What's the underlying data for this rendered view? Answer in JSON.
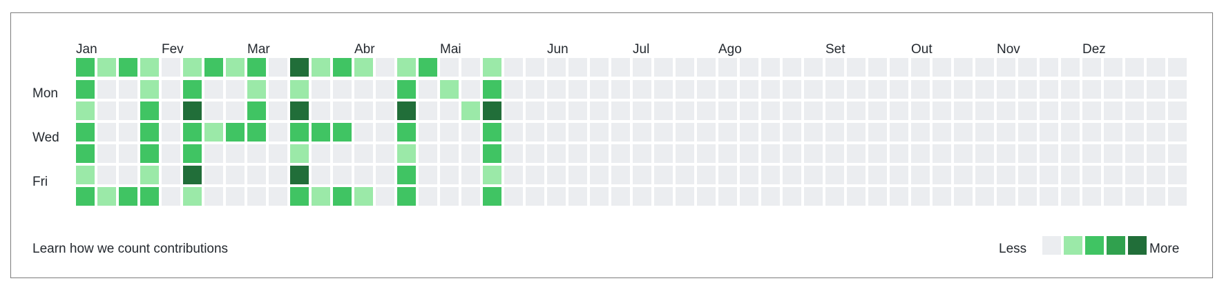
{
  "chart_data": {
    "type": "heatmap",
    "months": [
      "Jan",
      "Fev",
      "Mar",
      "Abr",
      "Mai",
      "Jun",
      "Jul",
      "Ago",
      "Set",
      "Out",
      "Nov",
      "Dez"
    ],
    "day_labels": [
      "Mon",
      "Wed",
      "Fri"
    ],
    "levels": [
      [
        2,
        1,
        2,
        1,
        0,
        1,
        2,
        1,
        2,
        0,
        4,
        1,
        2,
        1,
        0,
        1,
        2,
        0,
        0,
        1,
        0,
        0,
        0,
        0,
        0,
        0,
        0,
        0,
        0,
        0,
        0,
        0,
        0,
        0,
        0,
        0,
        0,
        0,
        0,
        0,
        0,
        0,
        0,
        0,
        0,
        0,
        0,
        0,
        0,
        0,
        0,
        0
      ],
      [
        2,
        0,
        0,
        1,
        0,
        2,
        0,
        0,
        1,
        0,
        1,
        0,
        0,
        0,
        0,
        2,
        0,
        1,
        0,
        2,
        0,
        0,
        0,
        0,
        0,
        0,
        0,
        0,
        0,
        0,
        0,
        0,
        0,
        0,
        0,
        0,
        0,
        0,
        0,
        0,
        0,
        0,
        0,
        0,
        0,
        0,
        0,
        0,
        0,
        0,
        0,
        0
      ],
      [
        1,
        0,
        0,
        2,
        0,
        4,
        0,
        0,
        2,
        0,
        4,
        0,
        0,
        0,
        0,
        4,
        0,
        0,
        1,
        4,
        0,
        0,
        0,
        0,
        0,
        0,
        0,
        0,
        0,
        0,
        0,
        0,
        0,
        0,
        0,
        0,
        0,
        0,
        0,
        0,
        0,
        0,
        0,
        0,
        0,
        0,
        0,
        0,
        0,
        0,
        0,
        0
      ],
      [
        2,
        0,
        0,
        2,
        0,
        2,
        1,
        2,
        2,
        0,
        2,
        2,
        2,
        0,
        0,
        2,
        0,
        0,
        0,
        2,
        0,
        0,
        0,
        0,
        0,
        0,
        0,
        0,
        0,
        0,
        0,
        0,
        0,
        0,
        0,
        0,
        0,
        0,
        0,
        0,
        0,
        0,
        0,
        0,
        0,
        0,
        0,
        0,
        0,
        0,
        0,
        0
      ],
      [
        2,
        0,
        0,
        2,
        0,
        2,
        0,
        0,
        0,
        0,
        1,
        0,
        0,
        0,
        0,
        1,
        0,
        0,
        0,
        2,
        0,
        0,
        0,
        0,
        0,
        0,
        0,
        0,
        0,
        0,
        0,
        0,
        0,
        0,
        0,
        0,
        0,
        0,
        0,
        0,
        0,
        0,
        0,
        0,
        0,
        0,
        0,
        0,
        0,
        0,
        0,
        0
      ],
      [
        1,
        0,
        0,
        1,
        0,
        4,
        0,
        0,
        0,
        0,
        4,
        0,
        0,
        0,
        0,
        2,
        0,
        0,
        0,
        1,
        0,
        0,
        0,
        0,
        0,
        0,
        0,
        0,
        0,
        0,
        0,
        0,
        0,
        0,
        0,
        0,
        0,
        0,
        0,
        0,
        0,
        0,
        0,
        0,
        0,
        0,
        0,
        0,
        0,
        0,
        0,
        0
      ],
      [
        2,
        1,
        2,
        2,
        0,
        1,
        0,
        0,
        0,
        0,
        2,
        1,
        2,
        1,
        0,
        2,
        0,
        0,
        0,
        2,
        0,
        0,
        0,
        0,
        0,
        0,
        0,
        0,
        0,
        0,
        0,
        0,
        0,
        0,
        0,
        0,
        0,
        0,
        0,
        0,
        0,
        0,
        0,
        0,
        0,
        0,
        0,
        0,
        0,
        0,
        0,
        0
      ]
    ],
    "colors": [
      "#ebedf0",
      "#9be9a8",
      "#40c463",
      "#30a14e",
      "#216e39"
    ],
    "legend": {
      "less_label": "Less",
      "more_label": "More"
    }
  },
  "footer": {
    "learn_link": "Learn how we count contributions"
  }
}
